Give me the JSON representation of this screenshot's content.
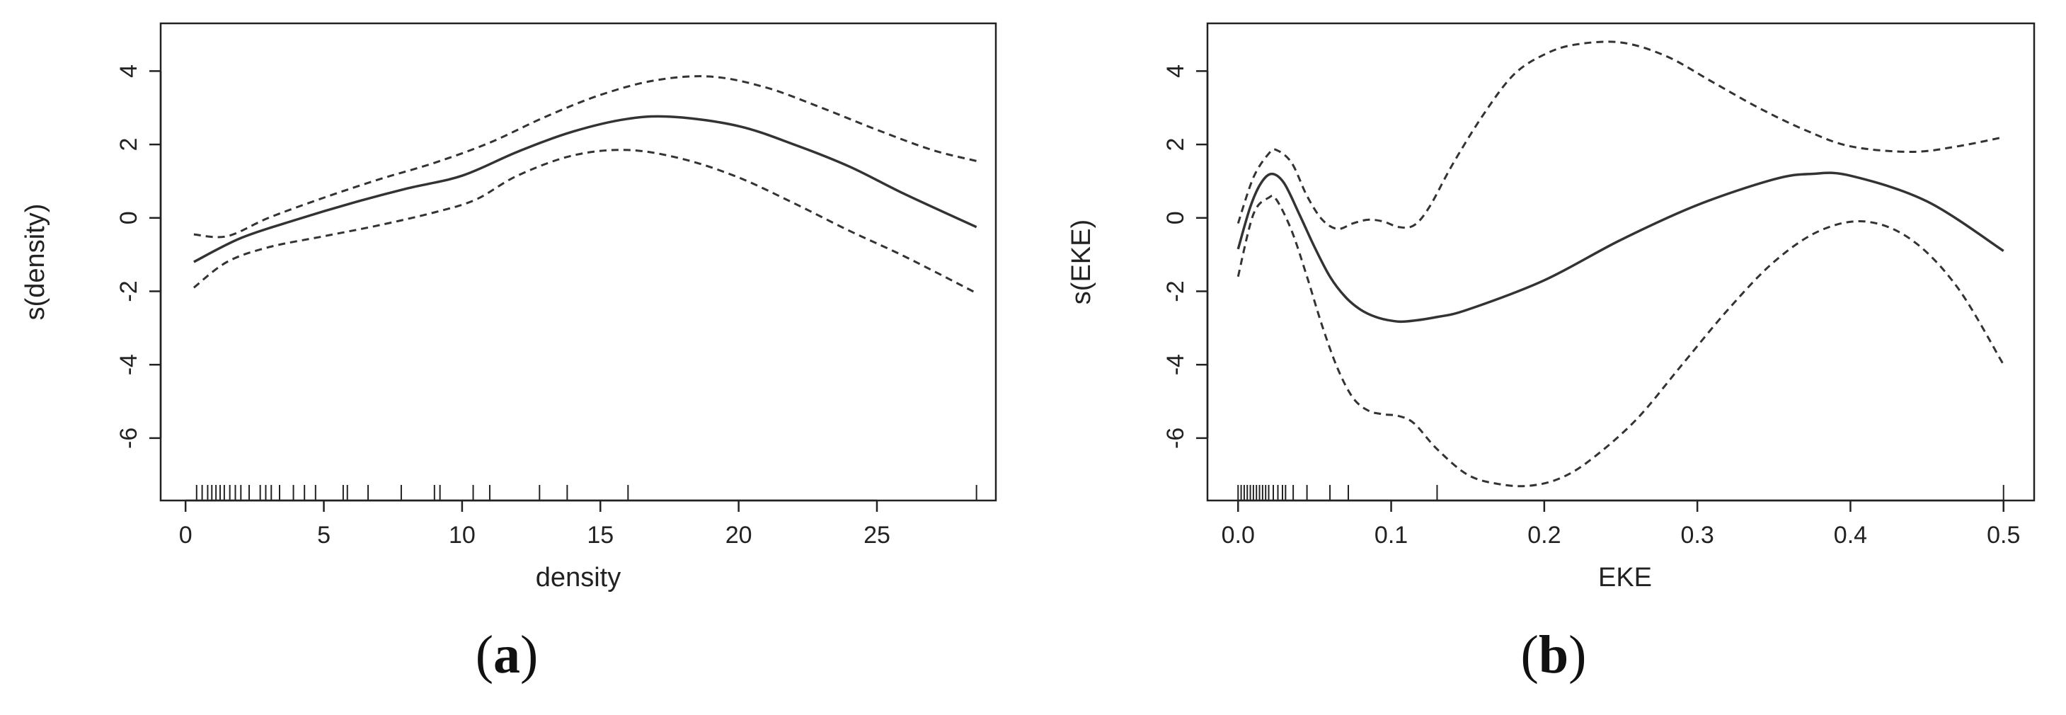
{
  "chart_data": [
    {
      "id": "a",
      "type": "line",
      "panel_label": "a",
      "xlabel": "density",
      "ylabel": "s(density)",
      "xlim": [
        -0.9,
        29.3
      ],
      "ylim": [
        -7.7,
        5.3
      ],
      "x_ticks": [
        0,
        5,
        10,
        15,
        20,
        25
      ],
      "y_ticks": [
        4,
        2,
        0,
        -2,
        -4,
        -6
      ],
      "grid": false,
      "series": [
        {
          "role": "fit",
          "x": [
            0.3,
            2,
            4,
            6,
            8,
            10,
            12,
            14,
            16,
            17.7,
            20,
            22,
            24,
            26,
            28.6
          ],
          "y": [
            -1.2,
            -0.55,
            -0.05,
            0.4,
            0.8,
            1.15,
            1.8,
            2.35,
            2.7,
            2.75,
            2.5,
            2.0,
            1.4,
            0.65,
            -0.25
          ]
        },
        {
          "role": "upper",
          "x": [
            0.3,
            1.5,
            3,
            5,
            7,
            9,
            11,
            13,
            15,
            17,
            19,
            21,
            23,
            25,
            27,
            28.6
          ],
          "y": [
            -0.45,
            -0.5,
            0.0,
            0.55,
            1.05,
            1.5,
            2.05,
            2.75,
            3.35,
            3.75,
            3.85,
            3.55,
            3.0,
            2.4,
            1.85,
            1.55
          ]
        },
        {
          "role": "lower",
          "x": [
            0.3,
            1.5,
            3,
            5,
            7,
            9,
            10.5,
            12,
            14,
            16,
            18,
            20,
            22,
            24,
            26,
            28.6
          ],
          "y": [
            -1.9,
            -1.2,
            -0.8,
            -0.5,
            -0.2,
            0.15,
            0.5,
            1.15,
            1.7,
            1.85,
            1.6,
            1.1,
            0.4,
            -0.35,
            -1.05,
            -2.05
          ]
        }
      ],
      "rug": [
        0.4,
        0.6,
        0.8,
        0.95,
        1.1,
        1.25,
        1.4,
        1.6,
        1.8,
        2.0,
        2.3,
        2.7,
        2.9,
        3.1,
        3.4,
        3.9,
        4.3,
        4.7,
        5.7,
        5.85,
        6.6,
        7.8,
        9.0,
        9.2,
        10.4,
        11.0,
        12.8,
        13.8,
        16.0,
        28.6
      ]
    },
    {
      "id": "b",
      "type": "line",
      "panel_label": "b",
      "xlabel": "EKE",
      "ylabel": "s(EKE)",
      "xlim": [
        -0.02,
        0.52
      ],
      "ylim": [
        -7.7,
        5.3
      ],
      "x_ticks": [
        0.0,
        0.1,
        0.2,
        0.3,
        0.4,
        0.5
      ],
      "x_tick_labels": [
        "0.0",
        "0.1",
        "0.2",
        "0.3",
        "0.4",
        "0.5"
      ],
      "y_ticks": [
        4,
        2,
        0,
        -2,
        -4,
        -6
      ],
      "grid": false,
      "series": [
        {
          "role": "fit",
          "x": [
            0.0,
            0.008,
            0.015,
            0.022,
            0.03,
            0.04,
            0.05,
            0.06,
            0.07,
            0.08,
            0.09,
            0.1,
            0.11,
            0.13,
            0.15,
            0.2,
            0.25,
            0.3,
            0.35,
            0.375,
            0.4,
            0.45,
            0.5
          ],
          "y": [
            -0.85,
            0.3,
            0.95,
            1.2,
            0.95,
            0.1,
            -0.8,
            -1.6,
            -2.15,
            -2.5,
            -2.7,
            -2.8,
            -2.82,
            -2.7,
            -2.5,
            -1.7,
            -0.6,
            0.35,
            1.05,
            1.2,
            1.15,
            0.45,
            -0.9
          ]
        },
        {
          "role": "upper",
          "x": [
            0.0,
            0.01,
            0.02,
            0.025,
            0.035,
            0.045,
            0.055,
            0.065,
            0.075,
            0.085,
            0.095,
            0.105,
            0.115,
            0.125,
            0.14,
            0.16,
            0.18,
            0.2,
            0.22,
            0.25,
            0.28,
            0.31,
            0.34,
            0.37,
            0.4,
            0.44,
            0.47,
            0.5
          ],
          "y": [
            -0.15,
            1.1,
            1.75,
            1.85,
            1.5,
            0.6,
            -0.05,
            -0.3,
            -0.15,
            -0.05,
            -0.1,
            -0.25,
            -0.2,
            0.3,
            1.45,
            2.8,
            3.9,
            4.45,
            4.72,
            4.78,
            4.4,
            3.7,
            3.0,
            2.4,
            1.95,
            1.8,
            1.95,
            2.2
          ]
        },
        {
          "role": "lower",
          "x": [
            0.0,
            0.01,
            0.02,
            0.025,
            0.035,
            0.045,
            0.055,
            0.065,
            0.075,
            0.085,
            0.095,
            0.105,
            0.115,
            0.13,
            0.15,
            0.17,
            0.19,
            0.21,
            0.23,
            0.26,
            0.29,
            0.32,
            0.35,
            0.38,
            0.41,
            0.44,
            0.47,
            0.5
          ],
          "y": [
            -1.6,
            0.1,
            0.55,
            0.5,
            -0.35,
            -1.6,
            -2.95,
            -4.1,
            -4.9,
            -5.25,
            -5.35,
            -5.4,
            -5.6,
            -6.3,
            -7.0,
            -7.25,
            -7.3,
            -7.1,
            -6.6,
            -5.5,
            -4.0,
            -2.5,
            -1.2,
            -0.35,
            -0.1,
            -0.6,
            -1.9,
            -4.0
          ]
        }
      ],
      "rug": [
        0.0,
        0.002,
        0.004,
        0.006,
        0.008,
        0.01,
        0.012,
        0.014,
        0.016,
        0.018,
        0.02,
        0.023,
        0.026,
        0.029,
        0.031,
        0.036,
        0.045,
        0.06,
        0.072,
        0.13,
        0.5
      ]
    }
  ]
}
